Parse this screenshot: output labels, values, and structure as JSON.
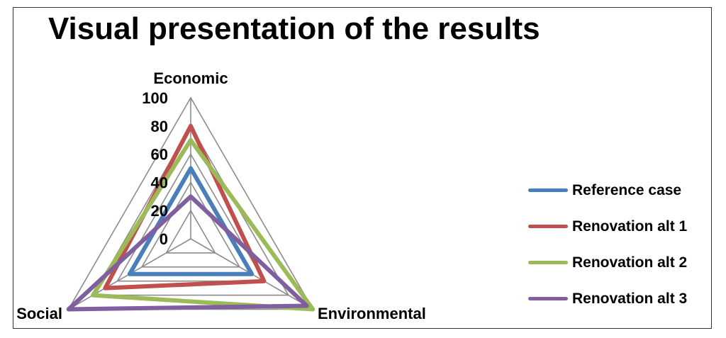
{
  "chart_data": {
    "type": "radar",
    "title": "Visual presentation of the results",
    "axes": [
      "Economic",
      "Environmental",
      "Social"
    ],
    "ticks": [
      "0",
      "20",
      "40",
      "60",
      "80",
      "100"
    ],
    "range": [
      0,
      100
    ],
    "series": [
      {
        "name": "Reference case",
        "color": "#4a7ebb",
        "values": [
          50,
          50,
          50
        ]
      },
      {
        "name": "Renovation alt 1",
        "color": "#c0504d",
        "values": [
          80,
          60,
          70
        ]
      },
      {
        "name": "Renovation alt 2",
        "color": "#9bbb59",
        "values": [
          70,
          100,
          80
        ]
      },
      {
        "name": "Renovation alt 3",
        "color": "#7f5fa0",
        "values": [
          30,
          95,
          100
        ]
      }
    ],
    "grid": true,
    "legend": "right"
  }
}
